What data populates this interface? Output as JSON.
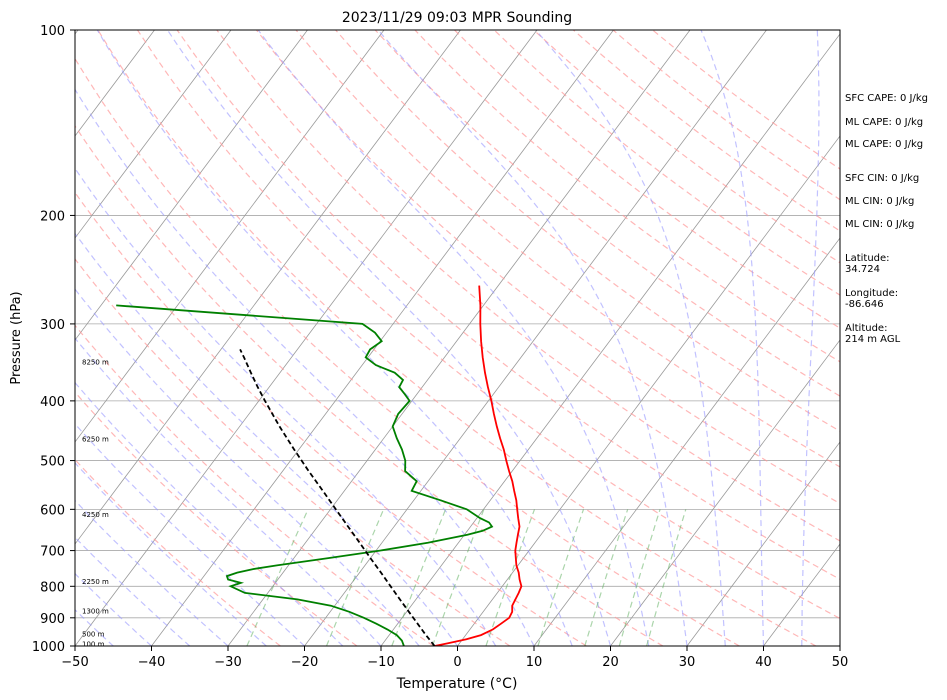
{
  "chart_data": {
    "type": "line",
    "subtype": "skew-t log-p sounding",
    "title": "2023/11/29 09:03 MPR Sounding",
    "xlabel": "Temperature (°C)",
    "ylabel": "Pressure (hPa)",
    "xlim": [
      -50,
      50
    ],
    "ylim": [
      1000,
      100
    ],
    "y_scale": "log",
    "grid": true,
    "x_ticks": [
      "−50",
      "−40",
      "−30",
      "−20",
      "−10",
      "0",
      "10",
      "20",
      "30",
      "40",
      "50"
    ],
    "y_ticks": [
      "100",
      "200",
      "300",
      "400",
      "500",
      "600",
      "700",
      "800",
      "900",
      "1000"
    ],
    "series": [
      {
        "color": "#ff0000",
        "p": [
          1000,
          990,
          975,
          960,
          940,
          920,
          900,
          880,
          860,
          840,
          820,
          800,
          780,
          760,
          740,
          720,
          700,
          680,
          660,
          640,
          620,
          600,
          580,
          560,
          540,
          520,
          500,
          480,
          460,
          440,
          420,
          400,
          380,
          360,
          340,
          320,
          300,
          280,
          260
        ],
        "t": [
          -3,
          -1.5,
          0.5,
          2,
          3,
          3.5,
          4,
          3.8,
          3.2,
          3,
          2.8,
          2.5,
          1.6,
          0.8,
          -0.2,
          -1,
          -1.8,
          -2.4,
          -3,
          -3.6,
          -4.6,
          -5.6,
          -6.6,
          -7.8,
          -9,
          -10.4,
          -11.8,
          -13.2,
          -14.8,
          -16.4,
          -18,
          -19.6,
          -21.4,
          -23.2,
          -25,
          -26.8,
          -28.6,
          -30.4,
          -32.5
        ]
      },
      {
        "color": "#008000",
        "p": [
          1000,
          980,
          960,
          940,
          920,
          900,
          880,
          860,
          840,
          820,
          800,
          790,
          780,
          770,
          760,
          750,
          740,
          720,
          700,
          680,
          660,
          650,
          640,
          630,
          620,
          600,
          580,
          560,
          540,
          520,
          500,
          480,
          460,
          440,
          420,
          400,
          390,
          380,
          370,
          360,
          350,
          340,
          330,
          320,
          310,
          300,
          280
        ],
        "t": [
          -7,
          -7.8,
          -9,
          -10.8,
          -12.8,
          -15,
          -17.5,
          -20.5,
          -25.5,
          -33,
          -35.5,
          -34.5,
          -36.5,
          -37,
          -36,
          -34.2,
          -31.5,
          -25.5,
          -19.5,
          -14,
          -9.6,
          -8,
          -7.2,
          -8,
          -9.6,
          -12.2,
          -16.5,
          -21.2,
          -21.5,
          -24,
          -25,
          -26.5,
          -28.3,
          -30,
          -30.5,
          -30.3,
          -31.6,
          -33,
          -33.2,
          -35,
          -38.2,
          -40.3,
          -40.5,
          -39.8,
          -41.5,
          -44,
          -78
        ]
      },
      {
        "color": "#000000",
        "style": "dashed",
        "p": [
          1000,
          960,
          920,
          880,
          840,
          800,
          760,
          720,
          680,
          640,
          600,
          560,
          520,
          480,
          440,
          400,
          380,
          360,
          340,
          330
        ],
        "t": [
          -3,
          -5.2,
          -7.4,
          -9.7,
          -12.1,
          -14.6,
          -17.2,
          -20,
          -22.9,
          -26,
          -29.3,
          -32.8,
          -36.6,
          -40.6,
          -44.8,
          -49.2,
          -51.5,
          -53.8,
          -56.2,
          -57.5
        ]
      }
    ],
    "height_labels": [
      "100 m",
      "500 m",
      "1300 m",
      "2250 m",
      "4250 m",
      "6250 m",
      "8250 m"
    ]
  },
  "indices": {
    "sfc_cape": "SFC CAPE: 0 J/kg",
    "ml_cape_1": "ML CAPE: 0 J/kg",
    "ml_cape_2": "ML CAPE: 0 J/kg",
    "sfc_cin": "SFC CIN: 0 J/kg",
    "ml_cin_1": "ML CIN: 0 J/kg",
    "ml_cin_2": "ML CIN: 0 J/kg"
  },
  "location": {
    "lat_label": "Latitude:",
    "lat_value": "34.724",
    "lon_label": "Longitude:",
    "lon_value": "-86.646",
    "alt_label": "Altitude:",
    "alt_value": "214 m AGL"
  },
  "colors": {
    "temperature": "#ff0000",
    "dewpoint": "#008000",
    "parcel": "#000000",
    "dry_adiabat": "#ff9999",
    "moist_adiabat": "#9999ff",
    "mixing_ratio": "#66b366",
    "isotherm": "#999999"
  }
}
